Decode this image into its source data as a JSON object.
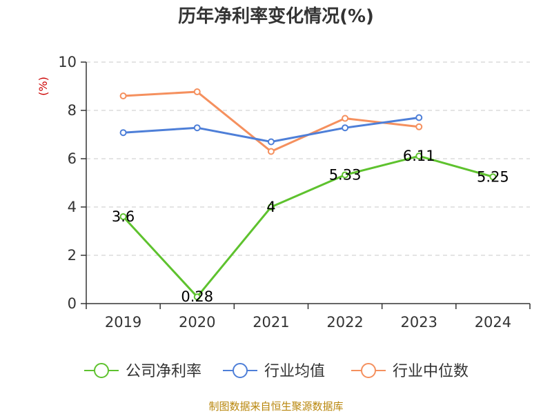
{
  "chart_data": {
    "type": "line",
    "title": "历年净利率变化情况(%)",
    "ylabel": "(%)",
    "xlabel": "",
    "categories": [
      "2019",
      "2020",
      "2021",
      "2022",
      "2023",
      "2024"
    ],
    "ylim": [
      0,
      10
    ],
    "yticks": [
      "0",
      "2",
      "4",
      "6",
      "8",
      "10"
    ],
    "grid": true,
    "legend_position": "bottom",
    "series": [
      {
        "name": "公司净利率",
        "color": "#5ec22e",
        "values": [
          3.6,
          0.28,
          4,
          5.33,
          6.11,
          5.25
        ],
        "labels": [
          "3.6",
          "0.28",
          "4",
          "5.33",
          "6.11",
          "5.25"
        ]
      },
      {
        "name": "行业均值",
        "color": "#4e7fd8",
        "values": [
          7.08,
          7.28,
          6.7,
          7.28,
          7.7,
          null
        ]
      },
      {
        "name": "行业中位数",
        "color": "#f5905e",
        "values": [
          8.6,
          8.77,
          6.3,
          7.67,
          7.32,
          null
        ]
      }
    ]
  },
  "source": "制图数据来自恒生聚源数据库"
}
